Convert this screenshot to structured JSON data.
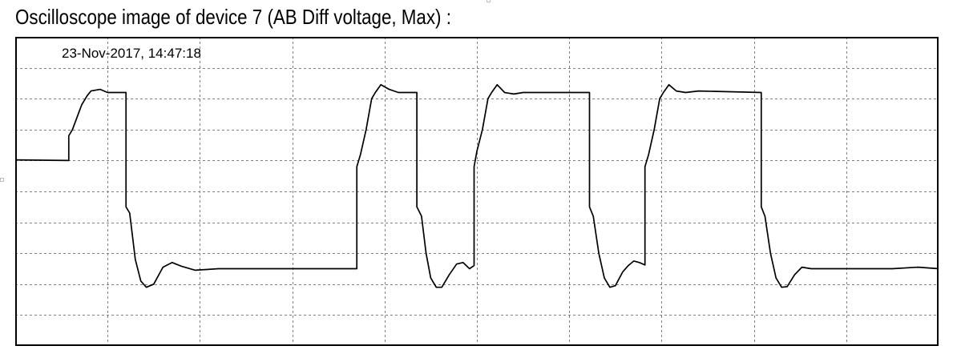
{
  "title": "Oscilloscope image of device 7 (AB Diff voltage, Max) :",
  "chart_data": {
    "type": "line",
    "title": "Oscilloscope image of device 7 (AB Diff voltage, Max) :",
    "timestamp": "23-Nov-2017, 14:47:18",
    "xlabel": "",
    "ylabel": "",
    "grid": true,
    "grid_divisions": {
      "x": 10,
      "y": 10
    },
    "xlim": [
      0,
      10
    ],
    "ylim": [
      0,
      10
    ],
    "colors": {
      "trace": "#000000",
      "grid": "#7f7f7f",
      "frame": "#000000",
      "background": "#ffffff"
    },
    "series": [
      {
        "points": [
          [
            0.0,
            6.02
          ],
          [
            0.58,
            6.0
          ],
          [
            0.58,
            6.8
          ],
          [
            0.62,
            7.0
          ],
          [
            0.72,
            7.8
          ],
          [
            0.78,
            8.1
          ],
          [
            0.82,
            8.25
          ],
          [
            0.92,
            8.3
          ],
          [
            1.0,
            8.2
          ],
          [
            1.2,
            8.2
          ],
          [
            1.2,
            4.5
          ],
          [
            1.24,
            4.3
          ],
          [
            1.3,
            2.8
          ],
          [
            1.36,
            2.1
          ],
          [
            1.42,
            1.9
          ],
          [
            1.5,
            2.0
          ],
          [
            1.6,
            2.55
          ],
          [
            1.7,
            2.7
          ],
          [
            1.8,
            2.58
          ],
          [
            1.95,
            2.45
          ],
          [
            2.2,
            2.5
          ],
          [
            2.8,
            2.5
          ],
          [
            3.7,
            2.5
          ],
          [
            3.7,
            5.8
          ],
          [
            3.74,
            6.2
          ],
          [
            3.8,
            7.0
          ],
          [
            3.86,
            8.0
          ],
          [
            3.9,
            8.2
          ],
          [
            3.96,
            8.45
          ],
          [
            4.05,
            8.3
          ],
          [
            4.15,
            8.2
          ],
          [
            4.35,
            8.2
          ],
          [
            4.35,
            4.5
          ],
          [
            4.4,
            4.2
          ],
          [
            4.45,
            3.0
          ],
          [
            4.5,
            2.2
          ],
          [
            4.56,
            1.9
          ],
          [
            4.62,
            1.9
          ],
          [
            4.7,
            2.3
          ],
          [
            4.78,
            2.65
          ],
          [
            4.85,
            2.7
          ],
          [
            4.92,
            2.5
          ],
          [
            4.97,
            2.6
          ],
          [
            4.97,
            5.8
          ],
          [
            5.0,
            6.3
          ],
          [
            5.06,
            7.0
          ],
          [
            5.12,
            8.0
          ],
          [
            5.16,
            8.2
          ],
          [
            5.22,
            8.45
          ],
          [
            5.3,
            8.2
          ],
          [
            5.4,
            8.15
          ],
          [
            5.5,
            8.2
          ],
          [
            6.22,
            8.2
          ],
          [
            6.22,
            4.5
          ],
          [
            6.26,
            4.2
          ],
          [
            6.32,
            3.0
          ],
          [
            6.38,
            2.2
          ],
          [
            6.44,
            1.9
          ],
          [
            6.5,
            1.95
          ],
          [
            6.58,
            2.4
          ],
          [
            6.64,
            2.6
          ],
          [
            6.7,
            2.75
          ],
          [
            6.76,
            2.7
          ],
          [
            6.82,
            2.62
          ],
          [
            6.82,
            5.8
          ],
          [
            6.86,
            6.2
          ],
          [
            6.92,
            7.0
          ],
          [
            6.98,
            8.0
          ],
          [
            7.02,
            8.2
          ],
          [
            7.08,
            8.45
          ],
          [
            7.16,
            8.25
          ],
          [
            7.26,
            8.2
          ],
          [
            7.4,
            8.25
          ],
          [
            8.08,
            8.2
          ],
          [
            8.08,
            4.5
          ],
          [
            8.12,
            4.2
          ],
          [
            8.18,
            3.0
          ],
          [
            8.24,
            2.2
          ],
          [
            8.3,
            1.9
          ],
          [
            8.36,
            1.92
          ],
          [
            8.44,
            2.3
          ],
          [
            8.52,
            2.55
          ],
          [
            8.62,
            2.5
          ],
          [
            9.0,
            2.5
          ],
          [
            9.5,
            2.5
          ],
          [
            9.78,
            2.55
          ],
          [
            10.0,
            2.5
          ]
        ]
      }
    ]
  }
}
